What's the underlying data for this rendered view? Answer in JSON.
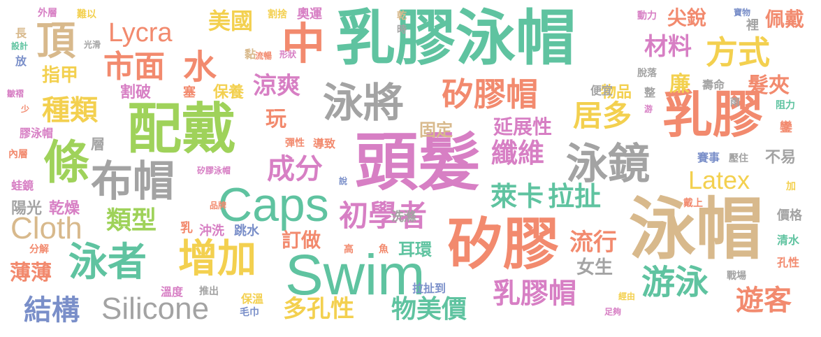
{
  "colors": {
    "green": "#5fc3a0",
    "pink": "#d77fc4",
    "orange": "#f28a6e",
    "gray": "#a3a3a3",
    "tan": "#d8b98c",
    "yellow": "#f3d04f",
    "lime": "#9fd25a",
    "blue": "#7a8fc9"
  },
  "words": [
    {
      "text": "乳膠泳帽"
    },
    {
      "text": "頭髮"
    },
    {
      "text": "泳帽"
    },
    {
      "text": "配戴"
    },
    {
      "text": "Swim"
    },
    {
      "text": "矽膠"
    },
    {
      "text": "Caps"
    },
    {
      "text": "乳膠"
    },
    {
      "text": "泳將"
    },
    {
      "text": "泳鏡"
    },
    {
      "text": "布帽"
    },
    {
      "text": "增加"
    },
    {
      "text": "泳者"
    },
    {
      "text": "游泳"
    },
    {
      "text": "條"
    },
    {
      "text": "頂"
    },
    {
      "text": "中"
    },
    {
      "text": "矽膠帽"
    },
    {
      "text": "方式"
    },
    {
      "text": "Lycra"
    },
    {
      "text": "市面"
    },
    {
      "text": "水"
    },
    {
      "text": "美國"
    },
    {
      "text": "種類"
    },
    {
      "text": "涼爽"
    },
    {
      "text": "初學者"
    },
    {
      "text": "纖維"
    },
    {
      "text": "居多"
    },
    {
      "text": "萊卡"
    },
    {
      "text": "拉扯"
    },
    {
      "text": "成分"
    },
    {
      "text": "乳膠帽"
    },
    {
      "text": "Silicone"
    },
    {
      "text": "Cloth"
    },
    {
      "text": "結構"
    },
    {
      "text": "多孔性"
    },
    {
      "text": "物美價"
    },
    {
      "text": "遊客"
    },
    {
      "text": "Latex"
    },
    {
      "text": "類型"
    },
    {
      "text": "流行"
    },
    {
      "text": "材料"
    },
    {
      "text": "廉"
    },
    {
      "text": "髮夾"
    },
    {
      "text": "玩"
    },
    {
      "text": "延展性"
    },
    {
      "text": "薄薄"
    },
    {
      "text": "訂做"
    },
    {
      "text": "耳環"
    },
    {
      "text": "女生"
    },
    {
      "text": "固定"
    },
    {
      "text": "尖銳"
    },
    {
      "text": "佩戴"
    },
    {
      "text": "指甲"
    },
    {
      "text": "割破"
    },
    {
      "text": "保養"
    },
    {
      "text": "物品"
    },
    {
      "text": "不易"
    },
    {
      "text": "乾燥"
    },
    {
      "text": "陽光"
    },
    {
      "text": "清水"
    },
    {
      "text": "孔性"
    },
    {
      "text": "價格"
    },
    {
      "text": "洗滌"
    },
    {
      "text": "沖洗"
    },
    {
      "text": "跳水"
    },
    {
      "text": "乳"
    },
    {
      "text": "拉扯到"
    },
    {
      "text": "溫度"
    },
    {
      "text": "推出"
    },
    {
      "text": "保溫"
    },
    {
      "text": "毛巾"
    },
    {
      "text": "品牌"
    },
    {
      "text": "矽膠泳帽"
    },
    {
      "text": "彈性"
    },
    {
      "text": "導致"
    },
    {
      "text": "層"
    },
    {
      "text": "塞"
    },
    {
      "text": "便宜"
    },
    {
      "text": "整"
    },
    {
      "text": "壽命"
    },
    {
      "text": "雨"
    },
    {
      "text": "阻力"
    },
    {
      "text": "鑾"
    },
    {
      "text": "賽事"
    },
    {
      "text": "壓住"
    },
    {
      "text": "加"
    },
    {
      "text": "戴上"
    },
    {
      "text": "戰場"
    },
    {
      "text": "經由"
    },
    {
      "text": "足夠"
    },
    {
      "text": "外層"
    },
    {
      "text": "難以"
    },
    {
      "text": "割捨"
    },
    {
      "text": "奧運"
    },
    {
      "text": "乾"
    },
    {
      "text": "時"
    },
    {
      "text": "動力"
    },
    {
      "text": "寶物"
    },
    {
      "text": "裡"
    },
    {
      "text": "長"
    },
    {
      "text": "設計"
    },
    {
      "text": "光滑"
    },
    {
      "text": "放"
    },
    {
      "text": "黏"
    },
    {
      "text": "流暢"
    },
    {
      "text": "形狀"
    },
    {
      "text": "脫落"
    },
    {
      "text": "游"
    },
    {
      "text": "皺褶"
    },
    {
      "text": "少"
    },
    {
      "text": "膠泳帽"
    },
    {
      "text": "內層"
    },
    {
      "text": "蛙鏡"
    },
    {
      "text": "說"
    },
    {
      "text": "分解"
    },
    {
      "text": "高"
    },
    {
      "text": "魚"
    }
  ]
}
